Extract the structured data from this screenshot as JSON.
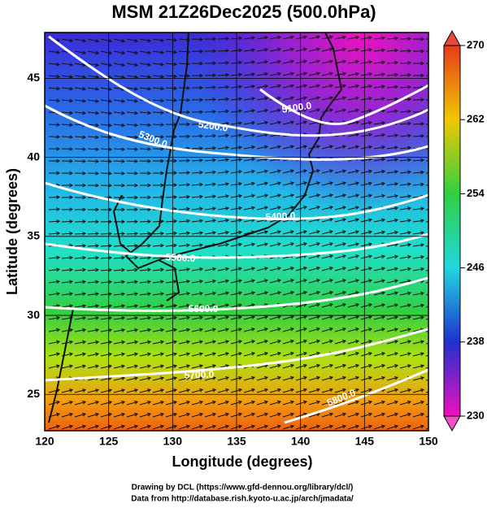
{
  "title": "MSM 21Z26Dec2025 (500.0hPa)",
  "map": {
    "x_label": "Longitude (degrees)",
    "y_label": "Latitude  (degrees)",
    "xlim": [
      120,
      150
    ],
    "ylim": [
      22.7,
      47.9
    ],
    "xticks": [
      120,
      125,
      130,
      135,
      140,
      145,
      150
    ],
    "yticks": [
      25,
      30,
      35,
      40,
      45
    ],
    "contour_labels": [
      "5100.0",
      "5200.0",
      "5300.0",
      "5400.0",
      "5500.0",
      "5600.0",
      "5700.0",
      "5800.0"
    ]
  },
  "colorbar": {
    "lim": [
      230,
      270
    ],
    "ticks": [
      230,
      238,
      246,
      254,
      262,
      270
    ]
  },
  "footer": [
    "Drawing by DCL (https://www.gfd-dennou.org/library/dcl/)",
    "Data from http://database.rish.kyoto-u.ac.jp/arch/jmadata/"
  ]
}
